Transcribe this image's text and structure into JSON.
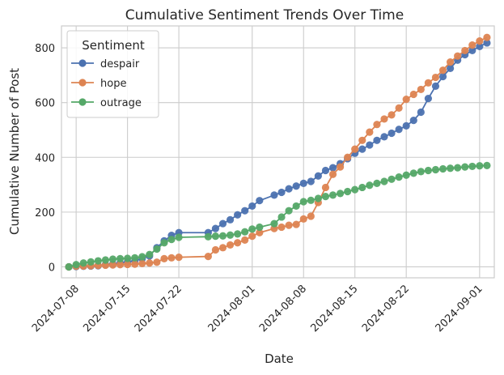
{
  "chart_data": {
    "type": "line",
    "title": "Cumulative Sentiment Trends Over Time",
    "xlabel": "Date",
    "ylabel": "Cumulative Number of Post",
    "xticks": [
      "2024-07-08",
      "2024-07-15",
      "2024-07-22",
      "2024-08-01",
      "2024-08-08",
      "2024-08-15",
      "2024-08-22",
      "2024-09-01"
    ],
    "yticks": [
      0,
      200,
      400,
      600,
      800
    ],
    "xlim": [
      "2024-07-06",
      "2024-09-03"
    ],
    "ylim": [
      -40,
      880
    ],
    "grid": true,
    "legend": {
      "title": "Sentiment",
      "placement": "top-left"
    },
    "series": [
      {
        "name": "despair",
        "color": "#4c72b0",
        "points": [
          [
            "2024-07-07",
            0
          ],
          [
            "2024-07-08",
            1
          ],
          [
            "2024-07-09",
            2
          ],
          [
            "2024-07-10",
            3
          ],
          [
            "2024-07-11",
            4
          ],
          [
            "2024-07-12",
            8
          ],
          [
            "2024-07-13",
            10
          ],
          [
            "2024-07-14",
            14
          ],
          [
            "2024-07-15",
            18
          ],
          [
            "2024-07-16",
            22
          ],
          [
            "2024-07-17",
            30
          ],
          [
            "2024-07-18",
            40
          ],
          [
            "2024-07-19",
            70
          ],
          [
            "2024-07-20",
            95
          ],
          [
            "2024-07-21",
            115
          ],
          [
            "2024-07-22",
            125
          ],
          [
            "2024-07-26",
            125
          ],
          [
            "2024-07-27",
            140
          ],
          [
            "2024-07-28",
            158
          ],
          [
            "2024-07-29",
            172
          ],
          [
            "2024-07-30",
            190
          ],
          [
            "2024-07-31",
            205
          ],
          [
            "2024-08-01",
            222
          ],
          [
            "2024-08-02",
            242
          ],
          [
            "2024-08-04",
            262
          ],
          [
            "2024-08-05",
            272
          ],
          [
            "2024-08-06",
            285
          ],
          [
            "2024-08-07",
            295
          ],
          [
            "2024-08-08",
            305
          ],
          [
            "2024-08-09",
            312
          ],
          [
            "2024-08-10",
            332
          ],
          [
            "2024-08-11",
            352
          ],
          [
            "2024-08-12",
            362
          ],
          [
            "2024-08-13",
            377
          ],
          [
            "2024-08-14",
            395
          ],
          [
            "2024-08-15",
            415
          ],
          [
            "2024-08-16",
            430
          ],
          [
            "2024-08-17",
            445
          ],
          [
            "2024-08-18",
            462
          ],
          [
            "2024-08-19",
            475
          ],
          [
            "2024-08-20",
            488
          ],
          [
            "2024-08-21",
            502
          ],
          [
            "2024-08-22",
            515
          ],
          [
            "2024-08-23",
            535
          ],
          [
            "2024-08-24",
            565
          ],
          [
            "2024-08-25",
            615
          ],
          [
            "2024-08-26",
            660
          ],
          [
            "2024-08-27",
            695
          ],
          [
            "2024-08-28",
            725
          ],
          [
            "2024-08-29",
            755
          ],
          [
            "2024-08-30",
            775
          ],
          [
            "2024-08-31",
            790
          ],
          [
            "2024-09-01",
            805
          ],
          [
            "2024-09-02",
            818
          ]
        ]
      },
      {
        "name": "hope",
        "color": "#dd8452",
        "points": [
          [
            "2024-07-07",
            0
          ],
          [
            "2024-07-08",
            2
          ],
          [
            "2024-07-09",
            3
          ],
          [
            "2024-07-10",
            4
          ],
          [
            "2024-07-11",
            5
          ],
          [
            "2024-07-12",
            6
          ],
          [
            "2024-07-13",
            7
          ],
          [
            "2024-07-14",
            8
          ],
          [
            "2024-07-15",
            9
          ],
          [
            "2024-07-16",
            10
          ],
          [
            "2024-07-17",
            12
          ],
          [
            "2024-07-18",
            14
          ],
          [
            "2024-07-19",
            17
          ],
          [
            "2024-07-20",
            30
          ],
          [
            "2024-07-21",
            33
          ],
          [
            "2024-07-22",
            35
          ],
          [
            "2024-07-26",
            38
          ],
          [
            "2024-07-27",
            62
          ],
          [
            "2024-07-28",
            70
          ],
          [
            "2024-07-29",
            80
          ],
          [
            "2024-07-30",
            88
          ],
          [
            "2024-07-31",
            98
          ],
          [
            "2024-08-01",
            112
          ],
          [
            "2024-08-02",
            125
          ],
          [
            "2024-08-04",
            140
          ],
          [
            "2024-08-05",
            145
          ],
          [
            "2024-08-06",
            152
          ],
          [
            "2024-08-07",
            155
          ],
          [
            "2024-08-08",
            175
          ],
          [
            "2024-08-09",
            185
          ],
          [
            "2024-08-10",
            235
          ],
          [
            "2024-08-11",
            290
          ],
          [
            "2024-08-12",
            338
          ],
          [
            "2024-08-13",
            365
          ],
          [
            "2024-08-14",
            400
          ],
          [
            "2024-08-15",
            430
          ],
          [
            "2024-08-16",
            462
          ],
          [
            "2024-08-17",
            492
          ],
          [
            "2024-08-18",
            520
          ],
          [
            "2024-08-19",
            540
          ],
          [
            "2024-08-20",
            555
          ],
          [
            "2024-08-21",
            580
          ],
          [
            "2024-08-22",
            612
          ],
          [
            "2024-08-23",
            630
          ],
          [
            "2024-08-24",
            648
          ],
          [
            "2024-08-25",
            672
          ],
          [
            "2024-08-26",
            692
          ],
          [
            "2024-08-27",
            718
          ],
          [
            "2024-08-28",
            748
          ],
          [
            "2024-08-29",
            770
          ],
          [
            "2024-08-30",
            790
          ],
          [
            "2024-08-31",
            810
          ],
          [
            "2024-09-01",
            825
          ],
          [
            "2024-09-02",
            838
          ]
        ]
      },
      {
        "name": "outrage",
        "color": "#55a868",
        "points": [
          [
            "2024-07-07",
            0
          ],
          [
            "2024-07-08",
            8
          ],
          [
            "2024-07-09",
            14
          ],
          [
            "2024-07-10",
            18
          ],
          [
            "2024-07-11",
            22
          ],
          [
            "2024-07-12",
            25
          ],
          [
            "2024-07-13",
            28
          ],
          [
            "2024-07-14",
            30
          ],
          [
            "2024-07-15",
            31
          ],
          [
            "2024-07-16",
            33
          ],
          [
            "2024-07-17",
            37
          ],
          [
            "2024-07-18",
            45
          ],
          [
            "2024-07-19",
            65
          ],
          [
            "2024-07-20",
            88
          ],
          [
            "2024-07-21",
            100
          ],
          [
            "2024-07-22",
            108
          ],
          [
            "2024-07-26",
            110
          ],
          [
            "2024-07-27",
            112
          ],
          [
            "2024-07-28",
            113
          ],
          [
            "2024-07-29",
            116
          ],
          [
            "2024-07-30",
            120
          ],
          [
            "2024-07-31",
            128
          ],
          [
            "2024-08-01",
            138
          ],
          [
            "2024-08-02",
            145
          ],
          [
            "2024-08-04",
            158
          ],
          [
            "2024-08-05",
            182
          ],
          [
            "2024-08-06",
            205
          ],
          [
            "2024-08-07",
            222
          ],
          [
            "2024-08-08",
            238
          ],
          [
            "2024-08-09",
            243
          ],
          [
            "2024-08-10",
            250
          ],
          [
            "2024-08-11",
            257
          ],
          [
            "2024-08-12",
            262
          ],
          [
            "2024-08-13",
            268
          ],
          [
            "2024-08-14",
            275
          ],
          [
            "2024-08-15",
            282
          ],
          [
            "2024-08-16",
            290
          ],
          [
            "2024-08-17",
            298
          ],
          [
            "2024-08-18",
            305
          ],
          [
            "2024-08-19",
            312
          ],
          [
            "2024-08-20",
            320
          ],
          [
            "2024-08-21",
            328
          ],
          [
            "2024-08-22",
            335
          ],
          [
            "2024-08-23",
            342
          ],
          [
            "2024-08-24",
            348
          ],
          [
            "2024-08-25",
            352
          ],
          [
            "2024-08-26",
            355
          ],
          [
            "2024-08-27",
            358
          ],
          [
            "2024-08-28",
            360
          ],
          [
            "2024-08-29",
            362
          ],
          [
            "2024-08-30",
            365
          ],
          [
            "2024-08-31",
            367
          ],
          [
            "2024-09-01",
            369
          ],
          [
            "2024-09-02",
            370
          ]
        ]
      }
    ]
  }
}
